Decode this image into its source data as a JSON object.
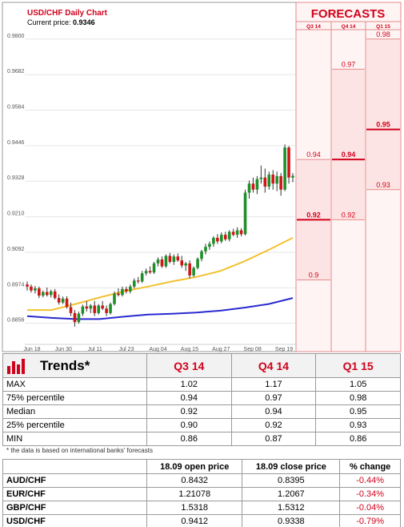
{
  "chart_header": {
    "title": "USD/CHF Daily Chart",
    "price_label": "Current price:",
    "price_value": "0.9346"
  },
  "forecasts": {
    "title": "FORECASTS",
    "columns": [
      "Q3 14",
      "Q4 14",
      "Q1 15"
    ]
  },
  "colors": {
    "accent": "#d0021b",
    "up_candle": "#1f8f2a",
    "down_candle": "#d01515",
    "ma_fast": "#f2c12e",
    "ma_slow": "#2a2ad0",
    "forecast_band": "#fde4e4"
  },
  "chart_data": {
    "type": "candlestick",
    "title": "USD/CHF Daily Chart",
    "y_ticks": [
      "0.9800",
      "0.9682",
      "0.9564",
      "0.9446",
      "0.9328",
      "0.9210",
      "0.9092",
      "0.8974",
      "0.8856"
    ],
    "ylim": [
      0.8786,
      0.985
    ],
    "x_ticks": [
      "Jun 18",
      "Jun 30",
      "Jul 11",
      "Jul 23",
      "Aug 04",
      "Aug 15",
      "Aug 27",
      "Sep 08",
      "Sep 19"
    ],
    "candles": [
      [
        0.8985,
        0.8995,
        0.8965,
        0.8978
      ],
      [
        0.8978,
        0.8985,
        0.8958,
        0.8965
      ],
      [
        0.8965,
        0.898,
        0.8955,
        0.8972
      ],
      [
        0.8972,
        0.8978,
        0.894,
        0.8948
      ],
      [
        0.8948,
        0.8965,
        0.8942,
        0.896
      ],
      [
        0.896,
        0.8975,
        0.8945,
        0.895
      ],
      [
        0.895,
        0.8968,
        0.8942,
        0.8962
      ],
      [
        0.8962,
        0.897,
        0.8935,
        0.894
      ],
      [
        0.894,
        0.8952,
        0.8918,
        0.8925
      ],
      [
        0.8925,
        0.8945,
        0.892,
        0.8938
      ],
      [
        0.8938,
        0.8946,
        0.8905,
        0.891
      ],
      [
        0.891,
        0.8925,
        0.888,
        0.889
      ],
      [
        0.889,
        0.89,
        0.8845,
        0.886
      ],
      [
        0.886,
        0.8895,
        0.8855,
        0.8888
      ],
      [
        0.8888,
        0.8918,
        0.888,
        0.8912
      ],
      [
        0.8912,
        0.893,
        0.8895,
        0.8905
      ],
      [
        0.8905,
        0.892,
        0.889,
        0.8915
      ],
      [
        0.8915,
        0.893,
        0.888,
        0.889
      ],
      [
        0.889,
        0.892,
        0.8885,
        0.8915
      ],
      [
        0.8915,
        0.893,
        0.89,
        0.8905
      ],
      [
        0.8905,
        0.8915,
        0.888,
        0.889
      ],
      [
        0.889,
        0.8925,
        0.8885,
        0.892
      ],
      [
        0.892,
        0.8962,
        0.8915,
        0.8955
      ],
      [
        0.8955,
        0.8972,
        0.8945,
        0.895
      ],
      [
        0.895,
        0.8978,
        0.8945,
        0.897
      ],
      [
        0.897,
        0.8978,
        0.8955,
        0.8962
      ],
      [
        0.8962,
        0.8985,
        0.8955,
        0.8978
      ],
      [
        0.8978,
        0.9005,
        0.8972,
        0.8998
      ],
      [
        0.8998,
        0.901,
        0.8988,
        0.8995
      ],
      [
        0.8995,
        0.903,
        0.899,
        0.9022
      ],
      [
        0.9022,
        0.9038,
        0.9015,
        0.903
      ],
      [
        0.903,
        0.9045,
        0.902,
        0.9025
      ],
      [
        0.9025,
        0.906,
        0.902,
        0.9055
      ],
      [
        0.9055,
        0.9075,
        0.9045,
        0.9068
      ],
      [
        0.9068,
        0.9078,
        0.904,
        0.9045
      ],
      [
        0.9045,
        0.9085,
        0.904,
        0.908
      ],
      [
        0.908,
        0.909,
        0.9055,
        0.906
      ],
      [
        0.906,
        0.9085,
        0.905,
        0.9078
      ],
      [
        0.9078,
        0.9088,
        0.906,
        0.9065
      ],
      [
        0.9065,
        0.908,
        0.904,
        0.9048
      ],
      [
        0.9048,
        0.906,
        0.903,
        0.9055
      ],
      [
        0.9055,
        0.9065,
        0.9005,
        0.9015
      ],
      [
        0.9015,
        0.9045,
        0.901,
        0.904
      ],
      [
        0.904,
        0.9075,
        0.9035,
        0.907
      ],
      [
        0.907,
        0.91,
        0.9062,
        0.9095
      ],
      [
        0.9095,
        0.912,
        0.9085,
        0.911
      ],
      [
        0.911,
        0.9128,
        0.91,
        0.912
      ],
      [
        0.912,
        0.9145,
        0.911,
        0.914
      ],
      [
        0.914,
        0.9152,
        0.912,
        0.9128
      ],
      [
        0.9128,
        0.9158,
        0.9122,
        0.915
      ],
      [
        0.915,
        0.916,
        0.913,
        0.9135
      ],
      [
        0.9135,
        0.9165,
        0.9128,
        0.916
      ],
      [
        0.916,
        0.917,
        0.9145,
        0.915
      ],
      [
        0.915,
        0.9175,
        0.914,
        0.9165
      ],
      [
        0.9165,
        0.9172,
        0.9145,
        0.9152
      ],
      [
        0.9152,
        0.93,
        0.9148,
        0.929
      ],
      [
        0.929,
        0.933,
        0.927,
        0.932
      ],
      [
        0.932,
        0.934,
        0.929,
        0.93
      ],
      [
        0.93,
        0.9345,
        0.9285,
        0.9335
      ],
      [
        0.9335,
        0.938,
        0.932,
        0.934
      ],
      [
        0.934,
        0.937,
        0.929,
        0.931
      ],
      [
        0.931,
        0.936,
        0.93,
        0.935
      ],
      [
        0.935,
        0.9365,
        0.93,
        0.932
      ],
      [
        0.932,
        0.936,
        0.9295,
        0.9345
      ],
      [
        0.9345,
        0.9355,
        0.928,
        0.93
      ],
      [
        0.93,
        0.945,
        0.9295,
        0.944
      ],
      [
        0.944,
        0.9445,
        0.932,
        0.934
      ],
      [
        0.934,
        0.9355,
        0.9325,
        0.9346
      ]
    ],
    "ma_fast": [
      0.89,
      0.89,
      0.892,
      0.8942,
      0.8962,
      0.8978,
      0.8995,
      0.901,
      0.903,
      0.9062,
      0.91,
      0.914
    ],
    "ma_slow": [
      0.888,
      0.8874,
      0.887,
      0.887,
      0.8878,
      0.8885,
      0.8888,
      0.8892,
      0.8898,
      0.8908,
      0.892,
      0.894
    ],
    "forecast_columns": [
      {
        "label": "Q3 14",
        "min": 0.86,
        "p25": 0.9,
        "median": 0.92,
        "p75": 0.94,
        "max": 1.02
      },
      {
        "label": "Q4 14",
        "min": 0.87,
        "p25": 0.92,
        "median": 0.94,
        "p75": 0.97,
        "max": 1.17
      },
      {
        "label": "Q1 15",
        "min": 0.86,
        "p25": 0.93,
        "median": 0.95,
        "p75": 0.98,
        "max": 1.05
      }
    ]
  },
  "trends": {
    "title": "Trends*",
    "columns": [
      "Q3 14",
      "Q4 14",
      "Q1 15"
    ],
    "rows": [
      {
        "label": "MAX",
        "values": [
          "1.02",
          "1.17",
          "1.05"
        ]
      },
      {
        "label": "75% percentile",
        "values": [
          "0.94",
          "0.97",
          "0.98"
        ]
      },
      {
        "label": "Median",
        "values": [
          "0.92",
          "0.94",
          "0.95"
        ]
      },
      {
        "label": "25% percentile",
        "values": [
          "0.90",
          "0.92",
          "0.93"
        ]
      },
      {
        "label": "MIN",
        "values": [
          "0.86",
          "0.87",
          "0.86"
        ]
      }
    ],
    "footnote": "* the data is based on international banks' forecasts"
  },
  "fx_table": {
    "columns": [
      "18.09 open price",
      "18.09 close price",
      "% change"
    ],
    "rows": [
      {
        "pair": "AUD/CHF",
        "open": "0.8432",
        "close": "0.8395",
        "change": "-0.44%"
      },
      {
        "pair": "EUR/CHF",
        "open": "1.21078",
        "close": "1.2067",
        "change": "-0.34%"
      },
      {
        "pair": "GBP/CHF",
        "open": "1.5318",
        "close": "1.5312",
        "change": "-0.04%"
      },
      {
        "pair": "USD/CHF",
        "open": "0.9412",
        "close": "0.9338",
        "change": "-0.79%"
      }
    ]
  }
}
